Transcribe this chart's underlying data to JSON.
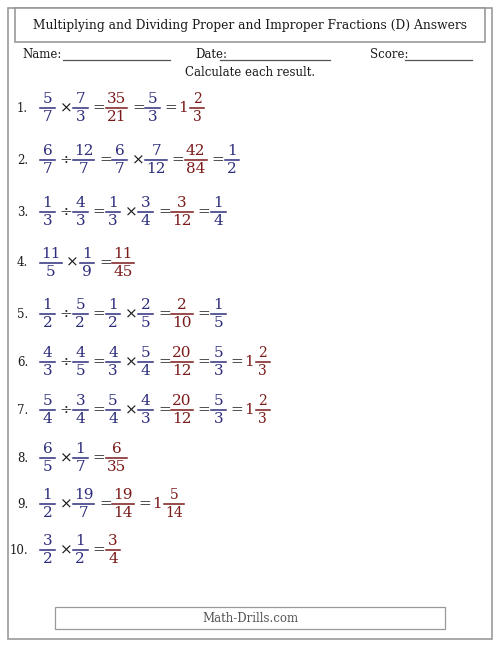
{
  "title": "Multiplying and Dividing Proper and Improper Fractions (D) Answers",
  "subtitle": "Calculate each result.",
  "bg_color": "#ffffff",
  "blue": "#2d2d7c",
  "red": "#7a1a1a",
  "black": "#1a1a1a",
  "gray": "#999999",
  "footer": "Math-Drills.com",
  "problems": [
    {
      "num": "1.",
      "parts": [
        {
          "type": "frac",
          "n": "5",
          "d": "7",
          "color": "blue"
        },
        {
          "type": "op",
          "val": "×"
        },
        {
          "type": "frac",
          "n": "7",
          "d": "3",
          "color": "blue"
        },
        {
          "type": "eq"
        },
        {
          "type": "frac",
          "n": "35",
          "d": "21",
          "color": "red"
        },
        {
          "type": "eq"
        },
        {
          "type": "frac",
          "n": "5",
          "d": "3",
          "color": "blue"
        },
        {
          "type": "eq"
        },
        {
          "type": "mixed",
          "whole": "1",
          "n": "2",
          "d": "3",
          "color": "red"
        }
      ]
    },
    {
      "num": "2.",
      "parts": [
        {
          "type": "frac",
          "n": "6",
          "d": "7",
          "color": "blue"
        },
        {
          "type": "op",
          "val": "÷"
        },
        {
          "type": "frac",
          "n": "12",
          "d": "7",
          "color": "blue"
        },
        {
          "type": "eq"
        },
        {
          "type": "frac",
          "n": "6",
          "d": "7",
          "color": "blue"
        },
        {
          "type": "op",
          "val": "×"
        },
        {
          "type": "frac",
          "n": "7",
          "d": "12",
          "color": "blue"
        },
        {
          "type": "eq"
        },
        {
          "type": "frac",
          "n": "42",
          "d": "84",
          "color": "red"
        },
        {
          "type": "eq"
        },
        {
          "type": "frac",
          "n": "1",
          "d": "2",
          "color": "blue"
        }
      ]
    },
    {
      "num": "3.",
      "parts": [
        {
          "type": "frac",
          "n": "1",
          "d": "3",
          "color": "blue"
        },
        {
          "type": "op",
          "val": "÷"
        },
        {
          "type": "frac",
          "n": "4",
          "d": "3",
          "color": "blue"
        },
        {
          "type": "eq"
        },
        {
          "type": "frac",
          "n": "1",
          "d": "3",
          "color": "blue"
        },
        {
          "type": "op",
          "val": "×"
        },
        {
          "type": "frac",
          "n": "3",
          "d": "4",
          "color": "blue"
        },
        {
          "type": "eq"
        },
        {
          "type": "frac",
          "n": "3",
          "d": "12",
          "color": "red"
        },
        {
          "type": "eq"
        },
        {
          "type": "frac",
          "n": "1",
          "d": "4",
          "color": "blue"
        }
      ]
    },
    {
      "num": "4.",
      "parts": [
        {
          "type": "frac",
          "n": "11",
          "d": "5",
          "color": "blue"
        },
        {
          "type": "op",
          "val": "×"
        },
        {
          "type": "frac",
          "n": "1",
          "d": "9",
          "color": "blue"
        },
        {
          "type": "eq"
        },
        {
          "type": "frac",
          "n": "11",
          "d": "45",
          "color": "red"
        }
      ]
    },
    {
      "num": "5.",
      "parts": [
        {
          "type": "frac",
          "n": "1",
          "d": "2",
          "color": "blue"
        },
        {
          "type": "op",
          "val": "÷"
        },
        {
          "type": "frac",
          "n": "5",
          "d": "2",
          "color": "blue"
        },
        {
          "type": "eq"
        },
        {
          "type": "frac",
          "n": "1",
          "d": "2",
          "color": "blue"
        },
        {
          "type": "op",
          "val": "×"
        },
        {
          "type": "frac",
          "n": "2",
          "d": "5",
          "color": "blue"
        },
        {
          "type": "eq"
        },
        {
          "type": "frac",
          "n": "2",
          "d": "10",
          "color": "red"
        },
        {
          "type": "eq"
        },
        {
          "type": "frac",
          "n": "1",
          "d": "5",
          "color": "blue"
        }
      ]
    },
    {
      "num": "6.",
      "parts": [
        {
          "type": "frac",
          "n": "4",
          "d": "3",
          "color": "blue"
        },
        {
          "type": "op",
          "val": "÷"
        },
        {
          "type": "frac",
          "n": "4",
          "d": "5",
          "color": "blue"
        },
        {
          "type": "eq"
        },
        {
          "type": "frac",
          "n": "4",
          "d": "3",
          "color": "blue"
        },
        {
          "type": "op",
          "val": "×"
        },
        {
          "type": "frac",
          "n": "5",
          "d": "4",
          "color": "blue"
        },
        {
          "type": "eq"
        },
        {
          "type": "frac",
          "n": "20",
          "d": "12",
          "color": "red"
        },
        {
          "type": "eq"
        },
        {
          "type": "frac",
          "n": "5",
          "d": "3",
          "color": "blue"
        },
        {
          "type": "eq"
        },
        {
          "type": "mixed",
          "whole": "1",
          "n": "2",
          "d": "3",
          "color": "red"
        }
      ]
    },
    {
      "num": "7.",
      "parts": [
        {
          "type": "frac",
          "n": "5",
          "d": "4",
          "color": "blue"
        },
        {
          "type": "op",
          "val": "÷"
        },
        {
          "type": "frac",
          "n": "3",
          "d": "4",
          "color": "blue"
        },
        {
          "type": "eq"
        },
        {
          "type": "frac",
          "n": "5",
          "d": "4",
          "color": "blue"
        },
        {
          "type": "op",
          "val": "×"
        },
        {
          "type": "frac",
          "n": "4",
          "d": "3",
          "color": "blue"
        },
        {
          "type": "eq"
        },
        {
          "type": "frac",
          "n": "20",
          "d": "12",
          "color": "red"
        },
        {
          "type": "eq"
        },
        {
          "type": "frac",
          "n": "5",
          "d": "3",
          "color": "blue"
        },
        {
          "type": "eq"
        },
        {
          "type": "mixed",
          "whole": "1",
          "n": "2",
          "d": "3",
          "color": "red"
        }
      ]
    },
    {
      "num": "8.",
      "parts": [
        {
          "type": "frac",
          "n": "6",
          "d": "5",
          "color": "blue"
        },
        {
          "type": "op",
          "val": "×"
        },
        {
          "type": "frac",
          "n": "1",
          "d": "7",
          "color": "blue"
        },
        {
          "type": "eq"
        },
        {
          "type": "frac",
          "n": "6",
          "d": "35",
          "color": "red"
        }
      ]
    },
    {
      "num": "9.",
      "parts": [
        {
          "type": "frac",
          "n": "1",
          "d": "2",
          "color": "blue"
        },
        {
          "type": "op",
          "val": "×"
        },
        {
          "type": "frac",
          "n": "19",
          "d": "7",
          "color": "blue"
        },
        {
          "type": "eq"
        },
        {
          "type": "frac",
          "n": "19",
          "d": "14",
          "color": "red"
        },
        {
          "type": "eq"
        },
        {
          "type": "mixed",
          "whole": "1",
          "n": "5",
          "d": "14",
          "color": "red"
        }
      ]
    },
    {
      "num": "10.",
      "parts": [
        {
          "type": "frac",
          "n": "3",
          "d": "2",
          "color": "blue"
        },
        {
          "type": "op",
          "val": "×"
        },
        {
          "type": "frac",
          "n": "1",
          "d": "2",
          "color": "blue"
        },
        {
          "type": "eq"
        },
        {
          "type": "frac",
          "n": "3",
          "d": "4",
          "color": "red"
        }
      ]
    }
  ]
}
